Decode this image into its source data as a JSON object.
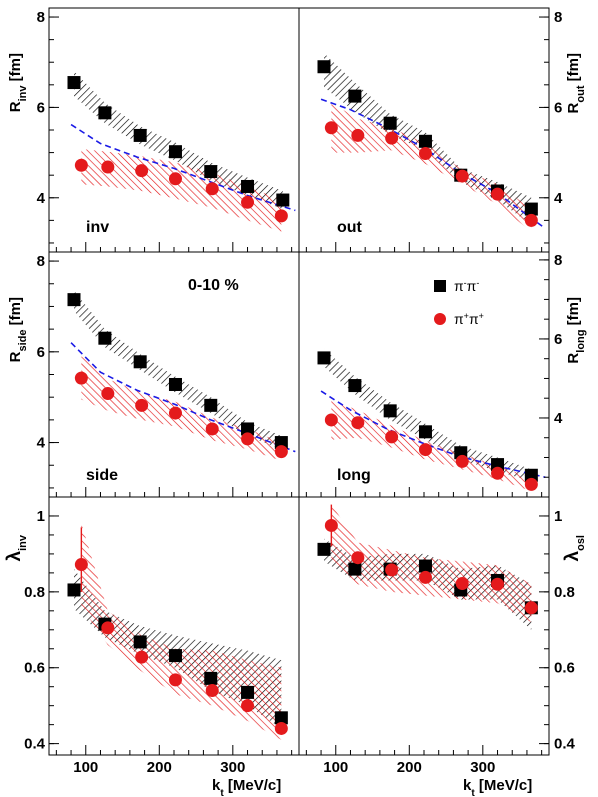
{
  "figure": {
    "centrality_label": "0-10 %",
    "xlabel_main": "k",
    "xlabel_sub": "t",
    "xlabel_unit": " [MeV/c]"
  },
  "colors": {
    "black_series": "#000000",
    "red_series": "#e41a1c",
    "model": "#1a1ae6",
    "frame": "#000000"
  },
  "legend": {
    "entries": [
      {
        "label_main": "π",
        "label_sup1": "-",
        "label_mid": "π",
        "label_sup2": "-",
        "color": "#000000",
        "marker": "square"
      },
      {
        "label_main": "π",
        "label_sup1": "+",
        "label_mid": "π",
        "label_sup2": "+",
        "color": "#e41a1c",
        "marker": "circle"
      }
    ]
  },
  "chart_data": [
    {
      "type": "scatter",
      "id": "rinv",
      "side": "left",
      "ylabel_main": "R",
      "ylabel_sub": "inv",
      "ylabel_unit": " [fm]",
      "panel_label": "inv",
      "xlim": [
        50,
        390
      ],
      "ylim": [
        2.8,
        8.2
      ],
      "yticks": [
        "4",
        "6",
        "8"
      ],
      "ytick_values": [
        4,
        6,
        8
      ],
      "xticks": [
        "100",
        "200",
        "300"
      ],
      "xtick_values": [
        100,
        200,
        300
      ],
      "series": [
        {
          "x": [
            84,
            126,
            174,
            222,
            270,
            320,
            368
          ],
          "y": [
            6.55,
            5.88,
            5.38,
            5.02,
            4.58,
            4.25,
            3.95
          ],
          "band_lo": [
            6.25,
            5.65,
            5.18,
            4.82,
            4.38,
            4.05,
            3.75
          ],
          "band_hi": [
            6.8,
            6.1,
            5.58,
            5.22,
            4.78,
            4.45,
            4.15
          ]
        },
        {
          "x": [
            94,
            130,
            176,
            222,
            272,
            320,
            366
          ],
          "y": [
            4.72,
            4.68,
            4.6,
            4.42,
            4.2,
            3.9,
            3.6
          ],
          "band_lo": [
            4.3,
            4.25,
            4.15,
            3.98,
            3.78,
            3.5,
            3.25
          ],
          "band_hi": [
            5.08,
            5.02,
            4.92,
            4.78,
            4.55,
            4.25,
            3.95
          ]
        }
      ],
      "model_x": [
        80,
        120,
        170,
        220,
        270,
        320,
        385
      ],
      "model_y": [
        5.62,
        5.2,
        4.9,
        4.65,
        4.35,
        4.05,
        3.72
      ]
    },
    {
      "type": "scatter",
      "id": "rout",
      "side": "right",
      "ylabel_main": "R",
      "ylabel_sub": "out",
      "ylabel_unit": " [fm]",
      "panel_label": "out",
      "xlim": [
        50,
        390
      ],
      "ylim": [
        2.8,
        8.2
      ],
      "yticks": [
        "4",
        "6",
        "8"
      ],
      "ytick_values": [
        4,
        6,
        8
      ],
      "xticks": [
        "100",
        "200",
        "300"
      ],
      "xtick_values": [
        100,
        200,
        300
      ],
      "series": [
        {
          "x": [
            84,
            126,
            174,
            222,
            270,
            320,
            366
          ],
          "y": [
            6.9,
            6.25,
            5.65,
            5.25,
            4.5,
            4.15,
            3.75
          ],
          "band_lo": [
            6.45,
            5.9,
            5.4,
            5.05,
            4.35,
            3.95,
            3.4
          ],
          "band_hi": [
            7.2,
            6.55,
            5.85,
            5.45,
            4.65,
            4.35,
            4.0
          ]
        },
        {
          "x": [
            94,
            130,
            176,
            222,
            272,
            320,
            366
          ],
          "y": [
            5.55,
            5.38,
            5.32,
            4.98,
            4.48,
            4.08,
            3.5
          ],
          "band_lo": [
            5.0,
            5.0,
            5.05,
            4.75,
            4.3,
            3.85,
            3.25
          ],
          "band_hi": [
            6.1,
            5.75,
            5.55,
            5.2,
            4.62,
            4.3,
            3.75
          ]
        }
      ],
      "model_x": [
        80,
        120,
        170,
        220,
        270,
        320,
        385
      ],
      "model_y": [
        6.18,
        5.95,
        5.55,
        5.1,
        4.55,
        4.1,
        3.32
      ]
    },
    {
      "type": "scatter",
      "id": "rside",
      "side": "left",
      "ylabel_main": "R",
      "ylabel_sub": "side",
      "ylabel_unit": " [fm]",
      "panel_label": "side",
      "xlim": [
        50,
        390
      ],
      "ylim": [
        2.8,
        8.2
      ],
      "yticks": [
        "4",
        "6",
        "8"
      ],
      "ytick_values": [
        4,
        6,
        8
      ],
      "xticks": [
        "100",
        "200",
        "300"
      ],
      "xtick_values": [
        100,
        200,
        300
      ],
      "series": [
        {
          "x": [
            84,
            126,
            174,
            222,
            270,
            320,
            366
          ],
          "y": [
            7.15,
            6.3,
            5.78,
            5.28,
            4.82,
            4.3,
            4.0
          ],
          "band_lo": [
            6.9,
            6.1,
            5.6,
            5.1,
            4.65,
            4.15,
            3.85
          ],
          "band_hi": [
            7.35,
            6.5,
            5.95,
            5.45,
            5.0,
            4.45,
            4.15
          ]
        },
        {
          "x": [
            94,
            130,
            176,
            222,
            272,
            320,
            366
          ],
          "y": [
            5.42,
            5.08,
            4.82,
            4.65,
            4.3,
            4.08,
            3.8
          ],
          "band_lo": [
            4.95,
            4.7,
            4.5,
            4.35,
            4.05,
            3.85,
            3.6
          ],
          "band_hi": [
            5.9,
            5.4,
            5.1,
            4.9,
            4.55,
            4.3,
            4.0
          ]
        }
      ],
      "model_x": [
        80,
        120,
        170,
        220,
        270,
        320,
        385
      ],
      "model_y": [
        6.2,
        5.55,
        5.15,
        4.85,
        4.5,
        4.2,
        3.8
      ]
    },
    {
      "type": "scatter",
      "id": "rlong",
      "side": "right",
      "ylabel_main": "R",
      "ylabel_sub": "long",
      "ylabel_unit": " [fm]",
      "panel_label": "long",
      "xlim": [
        50,
        390
      ],
      "ylim": [
        2.0,
        8.2
      ],
      "yticks": [
        "4",
        "6",
        "8"
      ],
      "ytick_values": [
        4,
        6,
        8
      ],
      "xticks": [
        "100",
        "200",
        "300"
      ],
      "xtick_values": [
        100,
        200,
        300
      ],
      "series": [
        {
          "x": [
            84,
            126,
            174,
            222,
            270,
            320,
            366
          ],
          "y": [
            5.52,
            4.82,
            4.18,
            3.65,
            3.12,
            2.82,
            2.55
          ],
          "band_lo": [
            5.3,
            4.6,
            3.95,
            3.45,
            2.95,
            2.65,
            2.4
          ],
          "band_hi": [
            5.75,
            5.05,
            4.4,
            3.85,
            3.3,
            3.0,
            2.7
          ]
        },
        {
          "x": [
            94,
            130,
            176,
            222,
            272,
            320,
            366
          ],
          "y": [
            3.95,
            3.88,
            3.52,
            3.2,
            2.9,
            2.6,
            2.32
          ],
          "band_lo": [
            3.45,
            3.5,
            3.25,
            2.95,
            2.7,
            2.45,
            2.15
          ],
          "band_hi": [
            4.45,
            4.2,
            3.8,
            3.42,
            3.1,
            2.78,
            2.5
          ]
        }
      ],
      "model_x": [
        80,
        120,
        170,
        220,
        270,
        320,
        385
      ],
      "model_y": [
        4.68,
        4.2,
        3.72,
        3.35,
        3.02,
        2.78,
        2.5
      ]
    },
    {
      "type": "scatter",
      "id": "linv",
      "side": "left",
      "ylabel_main": "λ",
      "ylabel_sub": "inv",
      "ylabel_unit": "",
      "panel_label": "",
      "xlim": [
        50,
        390
      ],
      "ylim": [
        0.37,
        1.05
      ],
      "yticks": [
        "0.4",
        "0.6",
        "0.8",
        "1"
      ],
      "ytick_values": [
        0.4,
        0.6,
        0.8,
        1.0
      ],
      "xticks": [
        "100",
        "200",
        "300"
      ],
      "xtick_values": [
        100,
        200,
        300
      ],
      "series": [
        {
          "x": [
            84,
            126,
            174,
            222,
            270,
            320,
            366
          ],
          "y": [
            0.805,
            0.715,
            0.668,
            0.632,
            0.572,
            0.535,
            0.468
          ],
          "band_lo": [
            0.755,
            0.68,
            0.635,
            0.6,
            0.54,
            0.5,
            0.44
          ],
          "band_hi": [
            0.86,
            0.75,
            0.71,
            0.685,
            0.665,
            0.645,
            0.62
          ]
        },
        {
          "x": [
            94,
            130,
            176,
            222,
            272,
            320,
            366
          ],
          "y": [
            0.872,
            0.705,
            0.628,
            0.568,
            0.54,
            0.5,
            0.44
          ],
          "band_lo": [
            0.76,
            0.66,
            0.59,
            0.53,
            0.5,
            0.46,
            0.41
          ],
          "band_hi": [
            0.98,
            0.75,
            0.685,
            0.65,
            0.645,
            0.62,
            0.6
          ]
        }
      ],
      "error_bars": [
        {
          "series": 1,
          "x": 94,
          "lo": 0.8,
          "hi": 0.97
        }
      ]
    },
    {
      "type": "scatter",
      "id": "losl",
      "side": "right",
      "ylabel_main": "λ",
      "ylabel_sub": "osl",
      "ylabel_unit": "",
      "panel_label": "",
      "xlim": [
        50,
        390
      ],
      "ylim": [
        0.37,
        1.05
      ],
      "yticks": [
        "0.4",
        "0.6",
        "0.8",
        "1"
      ],
      "ytick_values": [
        0.4,
        0.6,
        0.8,
        1.0
      ],
      "xticks": [
        "100",
        "200",
        "300"
      ],
      "xtick_values": [
        100,
        200,
        300
      ],
      "series": [
        {
          "x": [
            84,
            126,
            174,
            222,
            270,
            320,
            366
          ],
          "y": [
            0.912,
            0.86,
            0.86,
            0.868,
            0.805,
            0.83,
            0.758
          ],
          "band_lo": [
            0.88,
            0.83,
            0.83,
            0.83,
            0.78,
            0.78,
            0.7
          ],
          "band_hi": [
            0.94,
            0.89,
            0.9,
            0.9,
            0.86,
            0.87,
            0.82
          ]
        },
        {
          "x": [
            94,
            130,
            176,
            222,
            272,
            320,
            366
          ],
          "y": [
            0.975,
            0.89,
            0.858,
            0.838,
            0.822,
            0.82,
            0.758
          ],
          "band_lo": [
            0.88,
            0.82,
            0.8,
            0.79,
            0.78,
            0.77,
            0.72
          ],
          "band_hi": [
            1.03,
            0.93,
            0.91,
            0.89,
            0.88,
            0.87,
            0.82
          ]
        }
      ],
      "error_bars": [
        {
          "series": 1,
          "x": 94,
          "lo": 0.92,
          "hi": 1.03
        }
      ]
    }
  ]
}
